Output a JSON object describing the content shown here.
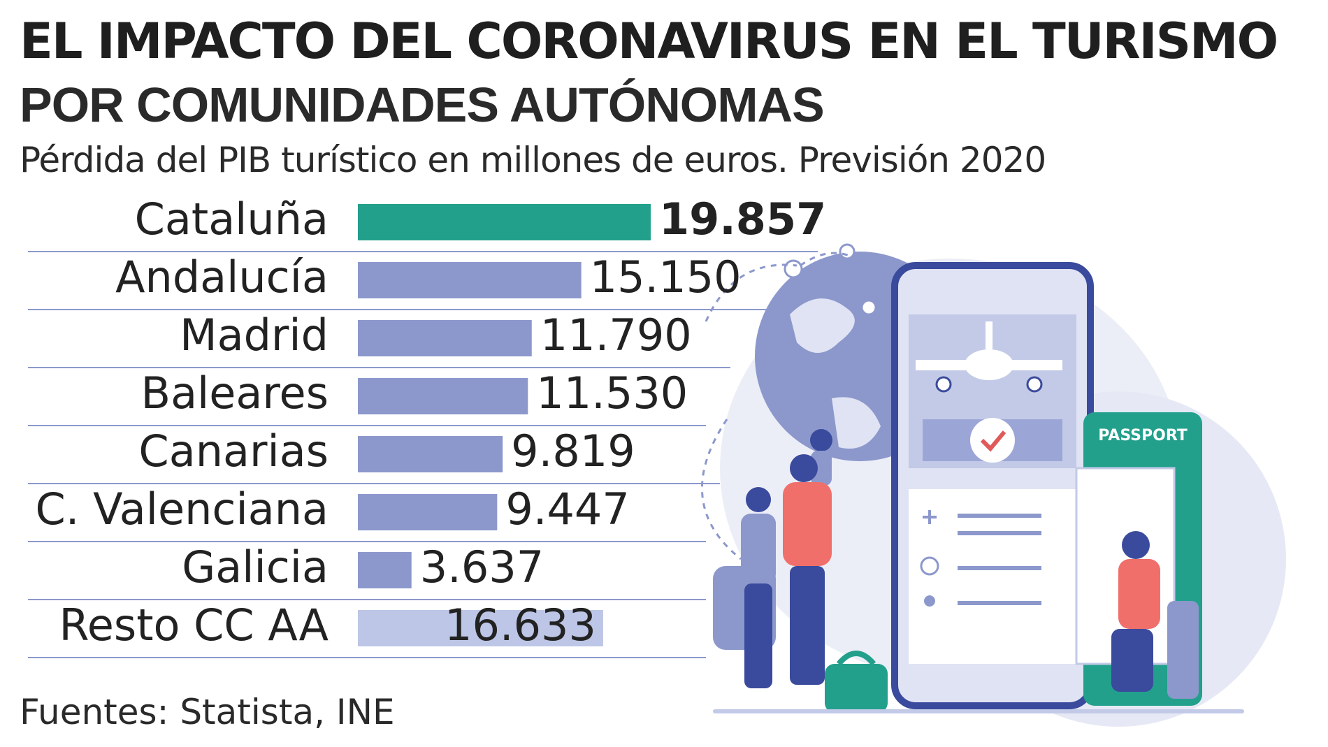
{
  "header": {
    "title": "EL IMPACTO DEL CORONAVIRUS EN EL TURISMO",
    "subtitle": "POR COMUNIDADES AUTÓNOMAS",
    "caption": "Pérdida del PIB turístico en millones de euros. Previsión 2020"
  },
  "footer": {
    "source": "Fuentes: Statista, INE"
  },
  "colors": {
    "highlight": "#22a08c",
    "bar": "#8c98cc",
    "bar_light": "#bdc6e6",
    "divider": "#8c98cc"
  },
  "chart_data": {
    "type": "bar",
    "orientation": "horizontal",
    "title": "EL IMPACTO DEL CORONAVIRUS EN EL TURISMO",
    "categories": [
      "Cataluña",
      "Andalucía",
      "Madrid",
      "Baleares",
      "Canarias",
      "C. Valenciana",
      "Galicia",
      "Resto CC AA"
    ],
    "values": [
      19857,
      15150,
      11790,
      11530,
      9819,
      9447,
      3637,
      16633
    ],
    "value_labels": [
      "19.857",
      "15.150",
      "11.790",
      "11.530",
      "9.819",
      "9.447",
      "3.637",
      "16.633"
    ],
    "highlight_index": 0,
    "light_index": 7,
    "unit": "millones de euros",
    "xlim": [
      0,
      20000
    ]
  },
  "illustration": {
    "passport_label": "PASSPORT"
  }
}
